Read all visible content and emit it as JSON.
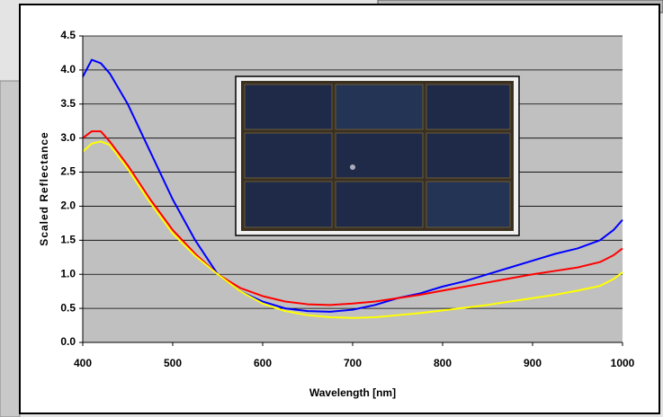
{
  "chart_data": {
    "type": "line",
    "x_label": "Wavelength [nm]",
    "y_label": "Scaled Reflectance",
    "x": [
      400,
      410,
      420,
      430,
      450,
      475,
      500,
      525,
      550,
      575,
      600,
      625,
      650,
      675,
      700,
      725,
      750,
      775,
      800,
      825,
      850,
      875,
      900,
      925,
      950,
      975,
      990,
      1000
    ],
    "series": [
      {
        "color": "#0000ff",
        "values": [
          3.9,
          4.15,
          4.1,
          3.95,
          3.5,
          2.8,
          2.1,
          1.5,
          1.0,
          0.75,
          0.6,
          0.5,
          0.46,
          0.45,
          0.48,
          0.55,
          0.65,
          0.72,
          0.82,
          0.9,
          1.0,
          1.1,
          1.2,
          1.3,
          1.38,
          1.5,
          1.65,
          1.8
        ]
      },
      {
        "color": "#ff0000",
        "values": [
          3.0,
          3.1,
          3.1,
          2.95,
          2.6,
          2.1,
          1.65,
          1.3,
          1.0,
          0.8,
          0.68,
          0.6,
          0.56,
          0.55,
          0.57,
          0.6,
          0.65,
          0.7,
          0.76,
          0.82,
          0.88,
          0.94,
          1.0,
          1.05,
          1.1,
          1.18,
          1.28,
          1.38
        ]
      },
      {
        "color": "#ffff00",
        "values": [
          2.8,
          2.92,
          2.95,
          2.9,
          2.55,
          2.05,
          1.6,
          1.27,
          1.0,
          0.75,
          0.57,
          0.46,
          0.4,
          0.37,
          0.36,
          0.37,
          0.4,
          0.43,
          0.47,
          0.51,
          0.55,
          0.6,
          0.65,
          0.7,
          0.76,
          0.83,
          0.93,
          1.03
        ]
      }
    ],
    "xlim": [
      400,
      1000
    ],
    "xticks": [
      400,
      500,
      600,
      700,
      800,
      900,
      1000
    ],
    "ylim": [
      0,
      4.5
    ],
    "yticks": [
      {
        "value": 0,
        "label": "0.0"
      },
      0.5,
      {
        "value": 1,
        "label": "1.0"
      },
      1.5,
      {
        "value": 2,
        "label": "2.0"
      },
      2.5,
      {
        "value": 3,
        "label": "3.0"
      },
      3.5,
      {
        "value": 4,
        "label": "4.0"
      },
      4.5
    ],
    "grid": true
  }
}
